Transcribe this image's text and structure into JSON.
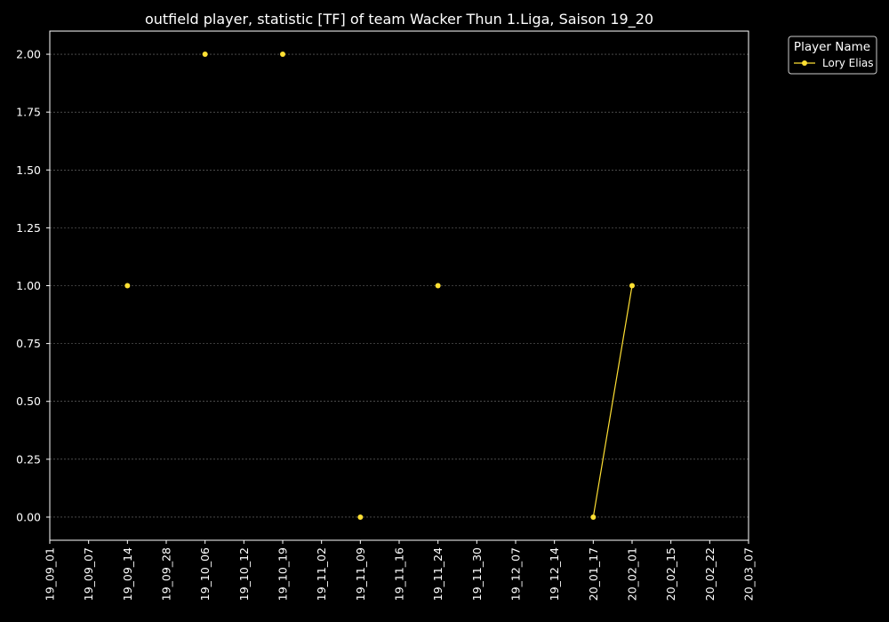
{
  "chart_data": {
    "type": "line",
    "title": "outfield player, statistic [TF] of team Wacker Thun 1.Liga, Saison 19_20",
    "xlabel": "",
    "ylabel": "",
    "x_tick_labels": [
      "19_09_01",
      "19_09_07",
      "19_09_14",
      "19_09_28",
      "19_10_06",
      "19_10_12",
      "19_10_19",
      "19_11_02",
      "19_11_09",
      "19_11_16",
      "19_11_24",
      "19_11_30",
      "19_12_07",
      "19_12_14",
      "20_01_17",
      "20_02_01",
      "20_02_15",
      "20_02_22",
      "20_03_07"
    ],
    "y_ticks": [
      0.0,
      0.25,
      0.5,
      0.75,
      1.0,
      1.25,
      1.5,
      1.75,
      2.0
    ],
    "y_tick_labels": [
      "0.00",
      "0.25",
      "0.50",
      "0.75",
      "1.00",
      "1.25",
      "1.50",
      "1.75",
      "2.00"
    ],
    "ylim": [
      -0.1,
      2.1
    ],
    "grid": true,
    "legend": {
      "title": "Player Name",
      "placement": "outside-top-right"
    },
    "series": [
      {
        "name": "Lory Elias",
        "color": "#ffe033",
        "points": [
          {
            "x": "19_09_14",
            "y": 1
          },
          {
            "x": "19_10_06",
            "y": 2
          },
          {
            "x": "19_10_19",
            "y": 2
          },
          {
            "x": "19_11_09",
            "y": 0
          },
          {
            "x": "19_11_24",
            "y": 1
          },
          {
            "x": "20_01_17",
            "y": 0
          },
          {
            "x": "20_02_01",
            "y": 1
          }
        ],
        "connected_segments": [
          [
            "20_01_17",
            "20_02_01"
          ]
        ]
      }
    ]
  }
}
